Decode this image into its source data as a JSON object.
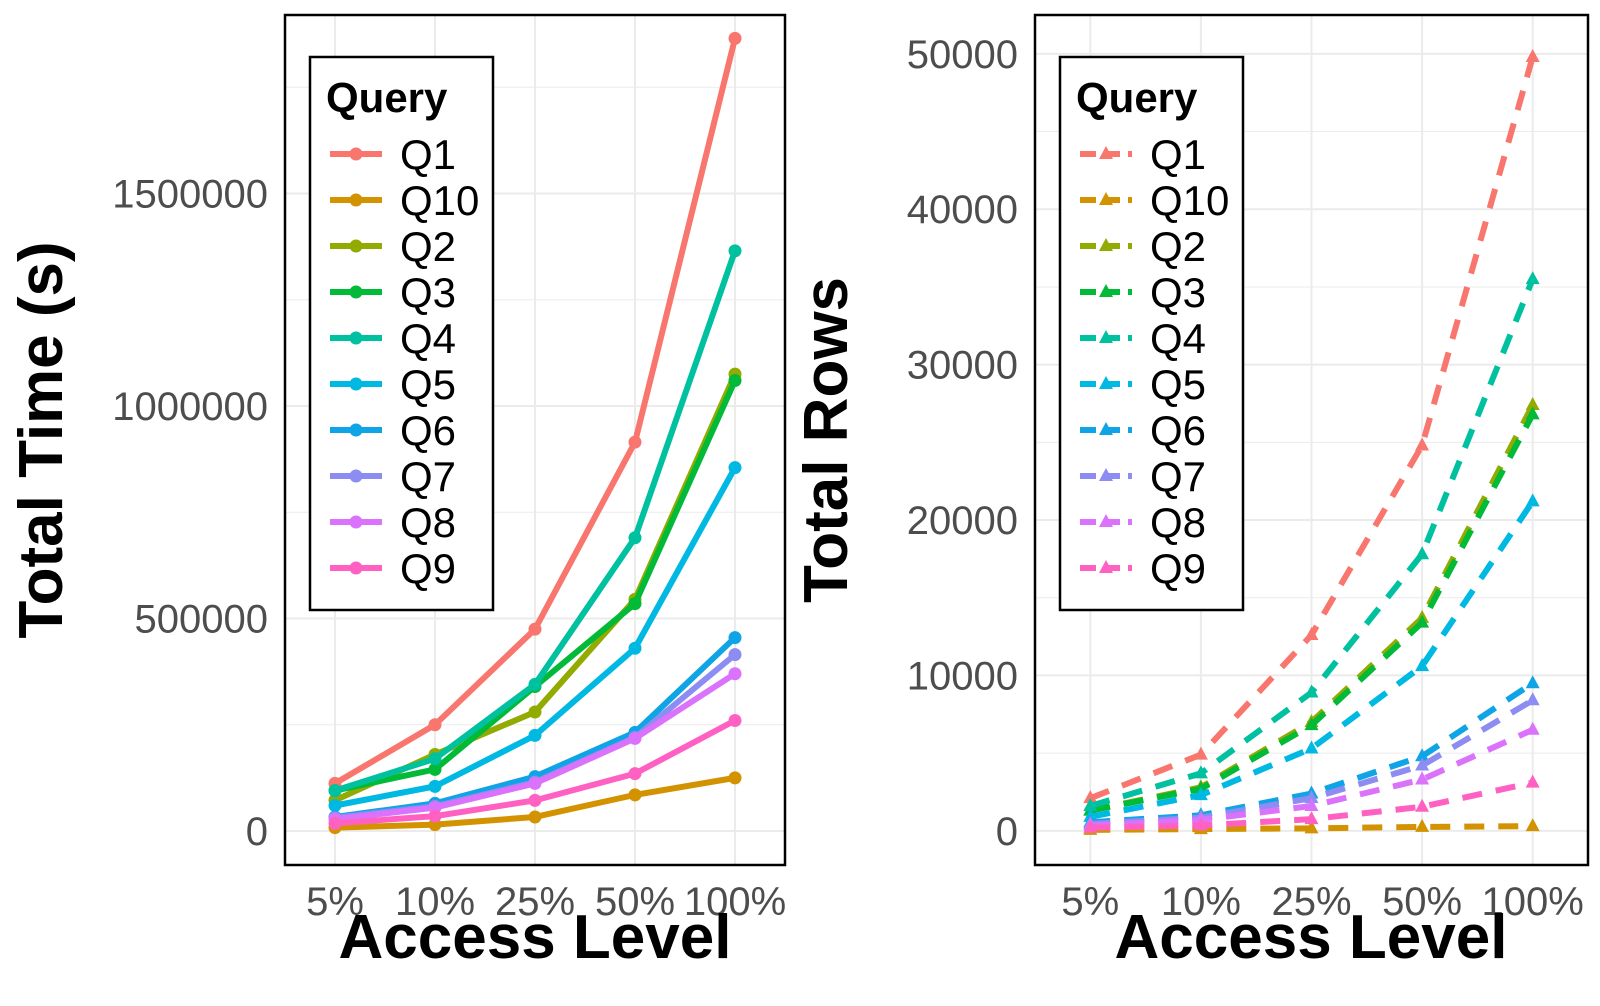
{
  "colors": {
    "Q1": "#F8766D",
    "Q10": "#D39200",
    "Q2": "#93AA00",
    "Q3": "#00BA38",
    "Q4": "#00C19F",
    "Q5": "#00B9E3",
    "Q6": "#0FA4E6",
    "Q7": "#8C8CF2",
    "Q8": "#DB72FB",
    "Q9": "#FF61C3"
  },
  "chart_data": [
    {
      "type": "line",
      "xlabel": "Access Level",
      "ylabel": "Total Time (s)",
      "categories": [
        "5%",
        "10%",
        "25%",
        "50%",
        "100%"
      ],
      "yticks": [
        "0",
        "500000",
        "1000000",
        "1500000"
      ],
      "ylim": [
        -80000,
        1920000
      ],
      "grid": true,
      "line_style": "solid",
      "marker": "circle",
      "legend": {
        "title": "Query",
        "position": "top-left"
      },
      "series": [
        {
          "name": "Q1",
          "values": [
            112000,
            250000,
            475000,
            915000,
            1865000
          ]
        },
        {
          "name": "Q10",
          "values": [
            8000,
            15000,
            33000,
            85000,
            125000
          ]
        },
        {
          "name": "Q2",
          "values": [
            72000,
            180000,
            280000,
            545000,
            1075000
          ]
        },
        {
          "name": "Q3",
          "values": [
            95000,
            145000,
            340000,
            535000,
            1060000
          ]
        },
        {
          "name": "Q4",
          "values": [
            95000,
            170000,
            345000,
            690000,
            1365000
          ]
        },
        {
          "name": "Q5",
          "values": [
            60000,
            105000,
            225000,
            430000,
            855000
          ]
        },
        {
          "name": "Q6",
          "values": [
            33000,
            65000,
            128000,
            232000,
            455000
          ]
        },
        {
          "name": "Q7",
          "values": [
            31000,
            58000,
            115000,
            220000,
            415000
          ]
        },
        {
          "name": "Q8",
          "values": [
            28000,
            55000,
            112000,
            218000,
            370000
          ]
        },
        {
          "name": "Q9",
          "values": [
            18000,
            35000,
            72000,
            135000,
            260000
          ]
        }
      ]
    },
    {
      "type": "line",
      "xlabel": "Access Level",
      "ylabel": "Total Rows",
      "categories": [
        "5%",
        "10%",
        "25%",
        "50%",
        "100%"
      ],
      "yticks": [
        "0",
        "10000",
        "20000",
        "30000",
        "40000",
        "50000"
      ],
      "ylim": [
        -2200,
        52500
      ],
      "grid": true,
      "line_style": "dashed",
      "marker": "triangle",
      "legend": {
        "title": "Query",
        "position": "top-left"
      },
      "series": [
        {
          "name": "Q1",
          "values": [
            2100,
            4900,
            12600,
            24800,
            49800
          ]
        },
        {
          "name": "Q10",
          "values": [
            60,
            110,
            160,
            250,
            300
          ]
        },
        {
          "name": "Q2",
          "values": [
            1300,
            2800,
            7000,
            13700,
            27400
          ]
        },
        {
          "name": "Q3",
          "values": [
            1300,
            2700,
            6800,
            13400,
            26800
          ]
        },
        {
          "name": "Q4",
          "values": [
            1600,
            3700,
            8900,
            17800,
            35500
          ]
        },
        {
          "name": "Q5",
          "values": [
            900,
            2300,
            5300,
            10600,
            21200
          ]
        },
        {
          "name": "Q6",
          "values": [
            550,
            1000,
            2400,
            4800,
            9500
          ]
        },
        {
          "name": "Q7",
          "values": [
            450,
            850,
            2100,
            4200,
            8400
          ]
        },
        {
          "name": "Q8",
          "values": [
            350,
            700,
            1600,
            3300,
            6500
          ]
        },
        {
          "name": "Q9",
          "values": [
            200,
            350,
            750,
            1550,
            3100
          ]
        }
      ]
    }
  ]
}
